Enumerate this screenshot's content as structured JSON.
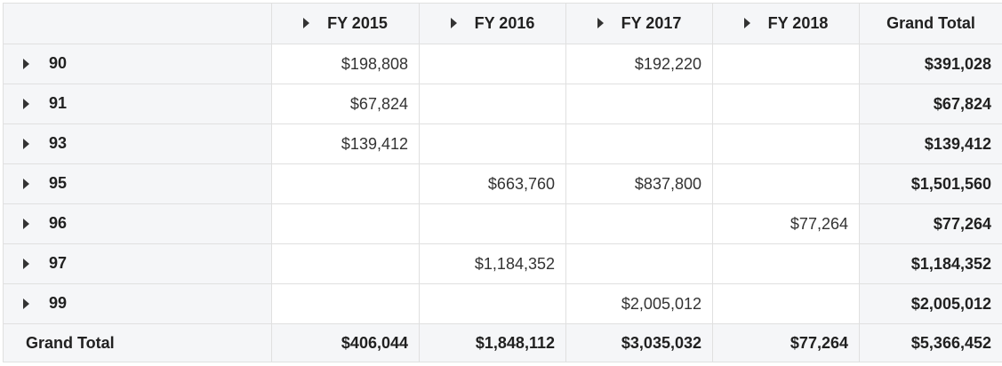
{
  "columns": {
    "years": [
      "FY 2015",
      "FY 2016",
      "FY 2017",
      "FY 2018"
    ],
    "grand_total_label": "Grand Total"
  },
  "rows": [
    {
      "label": "90",
      "cells": [
        "$198,808",
        "",
        "$192,220",
        ""
      ],
      "total": "$391,028"
    },
    {
      "label": "91",
      "cells": [
        "$67,824",
        "",
        "",
        ""
      ],
      "total": "$67,824"
    },
    {
      "label": "93",
      "cells": [
        "$139,412",
        "",
        "",
        ""
      ],
      "total": "$139,412"
    },
    {
      "label": "95",
      "cells": [
        "",
        "$663,760",
        "$837,800",
        ""
      ],
      "total": "$1,501,560"
    },
    {
      "label": "96",
      "cells": [
        "",
        "",
        "",
        "$77,264"
      ],
      "total": "$77,264"
    },
    {
      "label": "97",
      "cells": [
        "",
        "$1,184,352",
        "",
        ""
      ],
      "total": "$1,184,352"
    },
    {
      "label": "99",
      "cells": [
        "",
        "",
        "$2,005,012",
        ""
      ],
      "total": "$2,005,012"
    }
  ],
  "grand_total_row": {
    "label": "Grand Total",
    "cells": [
      "$406,044",
      "$1,848,112",
      "$3,035,032",
      "$77,264"
    ],
    "total": "$5,366,452"
  }
}
